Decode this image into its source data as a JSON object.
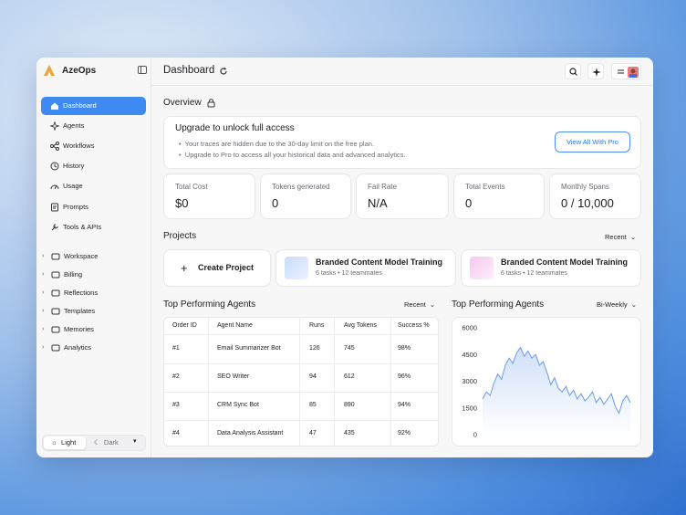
{
  "sidebar": {
    "brand": "AzeOps",
    "nav": [
      "Dashboard",
      "Agents",
      "Workflows",
      "History",
      "Usage",
      "Prompts",
      "Tools & APIs"
    ],
    "groups": [
      "Workspace",
      "Billing",
      "Reflections",
      "Templates",
      "Memories",
      "Analytics"
    ],
    "theme": [
      "Light",
      "Dark"
    ]
  },
  "header": {
    "title": "Dashboard"
  },
  "overview": {
    "title": "Overview",
    "banner": {
      "title": "Upgrade to unlock full access",
      "bullets": [
        "Your traces are hidden due to the 30-day limit on the free plan.",
        "Upgrade to Pro to access all your historical data and advanced analytics."
      ],
      "button": "View All With Pro"
    },
    "stats": [
      {
        "label": "Total Cost",
        "value": "$0"
      },
      {
        "label": "Tokens generated",
        "value": "0"
      },
      {
        "label": "Fail Rate",
        "value": "N/A"
      },
      {
        "label": "Total Events",
        "value": "0"
      },
      {
        "label": "Monthly Spans",
        "value": "0 / 10,000"
      }
    ]
  },
  "projects": {
    "title": "Projects",
    "sort": "Recent",
    "create": "Create Project",
    "cards": [
      {
        "title": "Branded Content Model Training",
        "meta": "6 tasks • 12 teammates"
      },
      {
        "title": "Branded Content Model Training",
        "meta": "6 tasks • 12 teammates"
      }
    ]
  },
  "agents": {
    "title": "Top Performing Agents",
    "sort": "Recent",
    "table": {
      "headers": [
        "Order ID",
        "Agent Name",
        "Runs",
        "Avg Tokens",
        "Success %"
      ],
      "rows": [
        [
          "#1",
          "Email Summarizer Bot",
          "126",
          "745",
          "98%"
        ],
        [
          "#2",
          "SEO Writer",
          "94",
          "612",
          "96%"
        ],
        [
          "#3",
          "CRM Sync Bot",
          "85",
          "890",
          "94%"
        ],
        [
          "#4",
          "Data Analysis Assistant",
          "47",
          "435",
          "92%"
        ]
      ]
    }
  },
  "chart_data": {
    "type": "line",
    "title": "Top Performing Agents",
    "period": "Bi-Weekly",
    "values": [
      2000,
      2400,
      2200,
      2900,
      3400,
      3100,
      3900,
      4300,
      4000,
      4600,
      4900,
      4400,
      4700,
      4300,
      4500,
      3900,
      4100,
      3500,
      2800,
      3200,
      2600,
      2400,
      2700,
      2200,
      2500,
      2000,
      2300,
      1900,
      2100,
      2400,
      1800,
      2100,
      1700,
      2000,
      2300,
      1600,
      1200,
      1900,
      2200,
      1800
    ],
    "ylim": [
      0,
      6000
    ],
    "yticks": [
      0,
      1500,
      3000,
      4500,
      6000
    ],
    "color": "#6b9be8"
  }
}
